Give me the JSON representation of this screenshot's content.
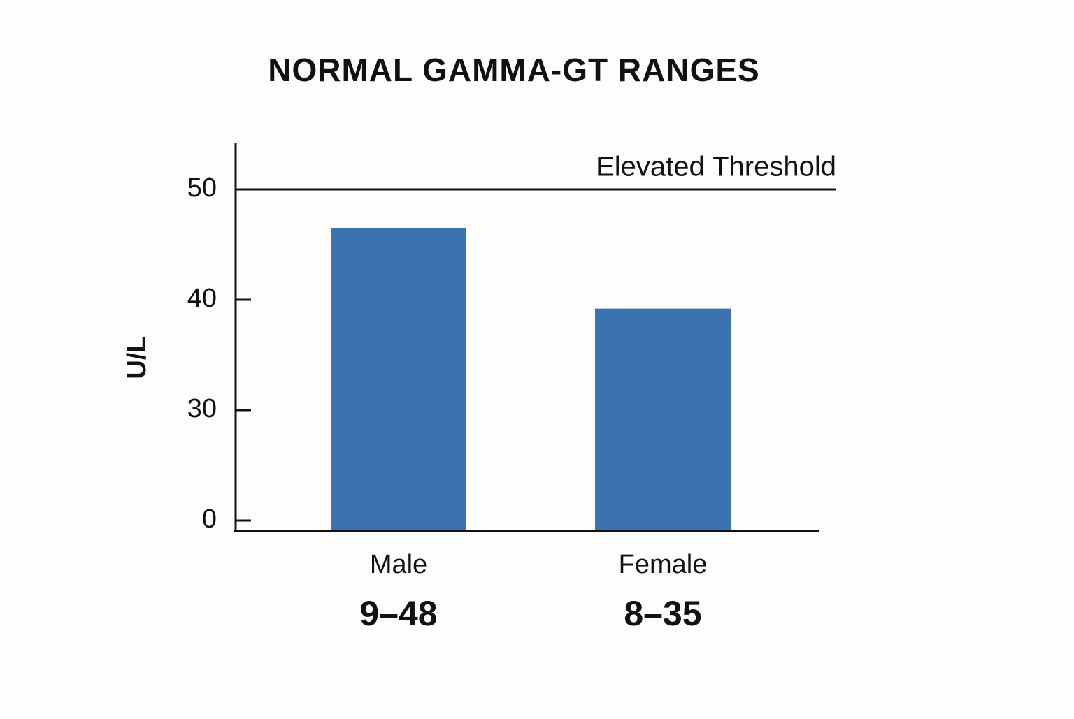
{
  "chart_data": {
    "type": "bar",
    "title": "NORMAL GAMMA-GT RANGES",
    "y_label": "U/L",
    "categories": [
      "Male",
      "Female"
    ],
    "ranges": [
      "9–48",
      "8–35"
    ],
    "values": [
      46.5,
      39.2
    ],
    "color": "#3a73ad",
    "ylim": [
      0,
      54
    ],
    "yticks": [
      0,
      30,
      40,
      50
    ],
    "threshold": {
      "label": "Elevated Threshold",
      "value": 50
    }
  }
}
